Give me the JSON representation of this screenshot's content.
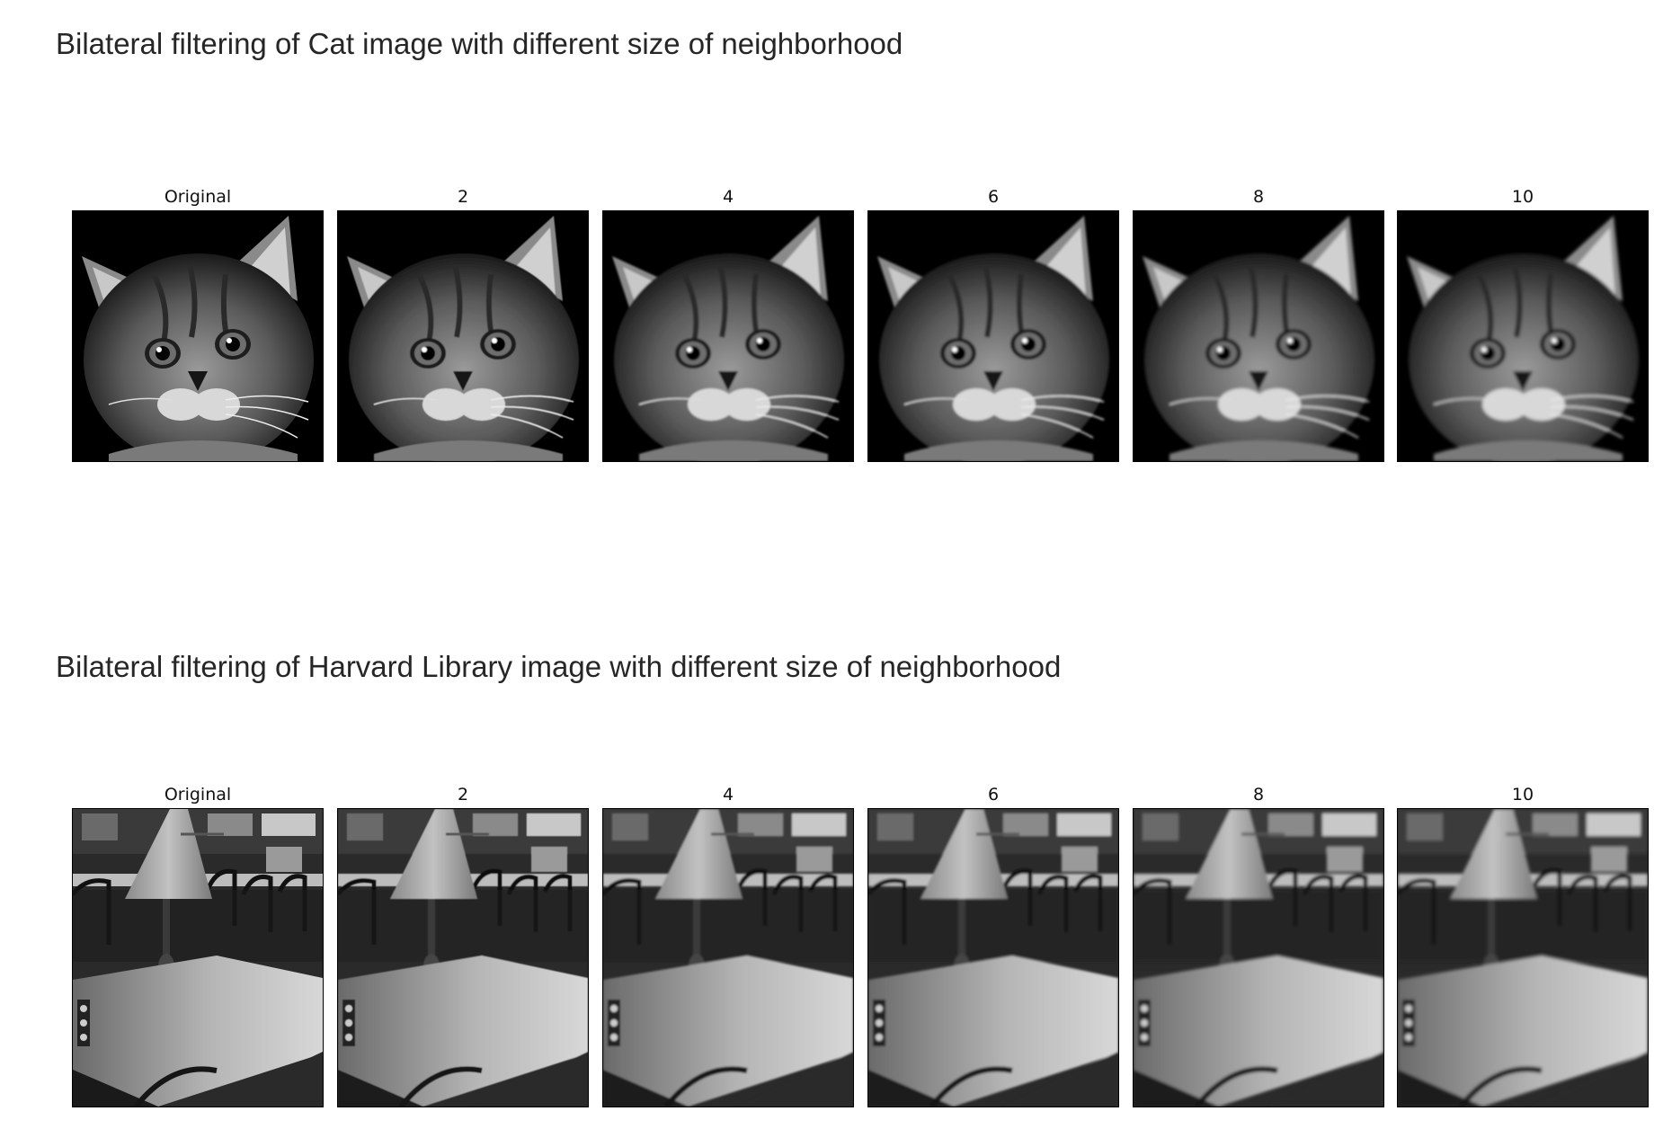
{
  "sections": [
    {
      "id": "cat",
      "title": "Bilateral filtering of Cat image with different size of neighborhood",
      "image_subject": "cat",
      "panels": [
        {
          "label": "Original",
          "blur": 0
        },
        {
          "label": "2",
          "blur": 0.6
        },
        {
          "label": "4",
          "blur": 1.1
        },
        {
          "label": "6",
          "blur": 1.4
        },
        {
          "label": "8",
          "blur": 1.6
        },
        {
          "label": "10",
          "blur": 1.8
        }
      ]
    },
    {
      "id": "lib",
      "title": "Bilateral filtering of Harvard Library image with different size of neighborhood",
      "image_subject": "library-table-lamp",
      "panels": [
        {
          "label": "Original",
          "blur": 0
        },
        {
          "label": "2",
          "blur": 0.6
        },
        {
          "label": "4",
          "blur": 1.1
        },
        {
          "label": "6",
          "blur": 1.4
        },
        {
          "label": "8",
          "blur": 1.6
        },
        {
          "label": "10",
          "blur": 1.8
        }
      ]
    }
  ]
}
